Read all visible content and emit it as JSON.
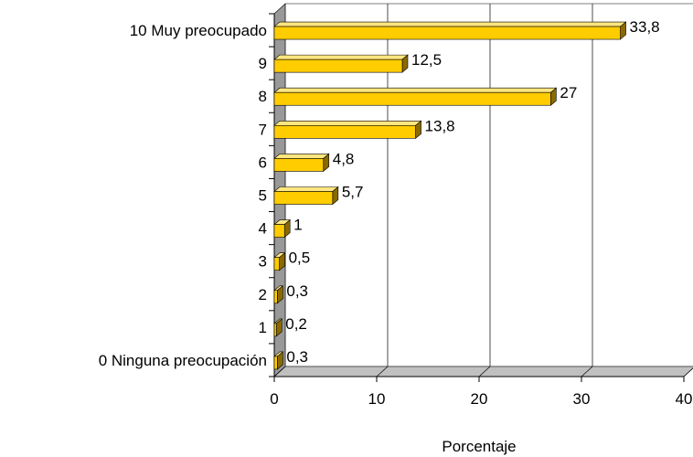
{
  "chart_data": {
    "type": "bar",
    "orientation": "horizontal",
    "style": "3d",
    "categories": [
      "10 Muy preocupado",
      "9",
      "8",
      "7",
      "6",
      "5",
      "4",
      "3",
      "2",
      "1",
      "0 Ninguna preocupación"
    ],
    "values": [
      33.8,
      12.5,
      27,
      13.8,
      4.8,
      5.7,
      1,
      0.5,
      0.3,
      0.2,
      0.3
    ],
    "value_labels": [
      "33,8",
      "12,5",
      "27",
      "13,8",
      "4,8",
      "5,7",
      "1",
      "0,5",
      "0,3",
      "0,2",
      "0,3"
    ],
    "xlabel": "Porcentaje",
    "ylabel": "",
    "xlim": [
      0,
      40
    ],
    "xticks": [
      0,
      10,
      20,
      30,
      40
    ],
    "xtick_labels": [
      "0",
      "10",
      "20",
      "30",
      "40"
    ],
    "grid": true,
    "legend": false,
    "colors": {
      "bar_front": "#FFCC00",
      "bar_top": "#FFE680",
      "bar_side": "#8A6A00",
      "back_wall": "#FFFFFF",
      "side_wall": "#999999",
      "floor": "#C0C0C0",
      "gridline": "#000000"
    }
  }
}
